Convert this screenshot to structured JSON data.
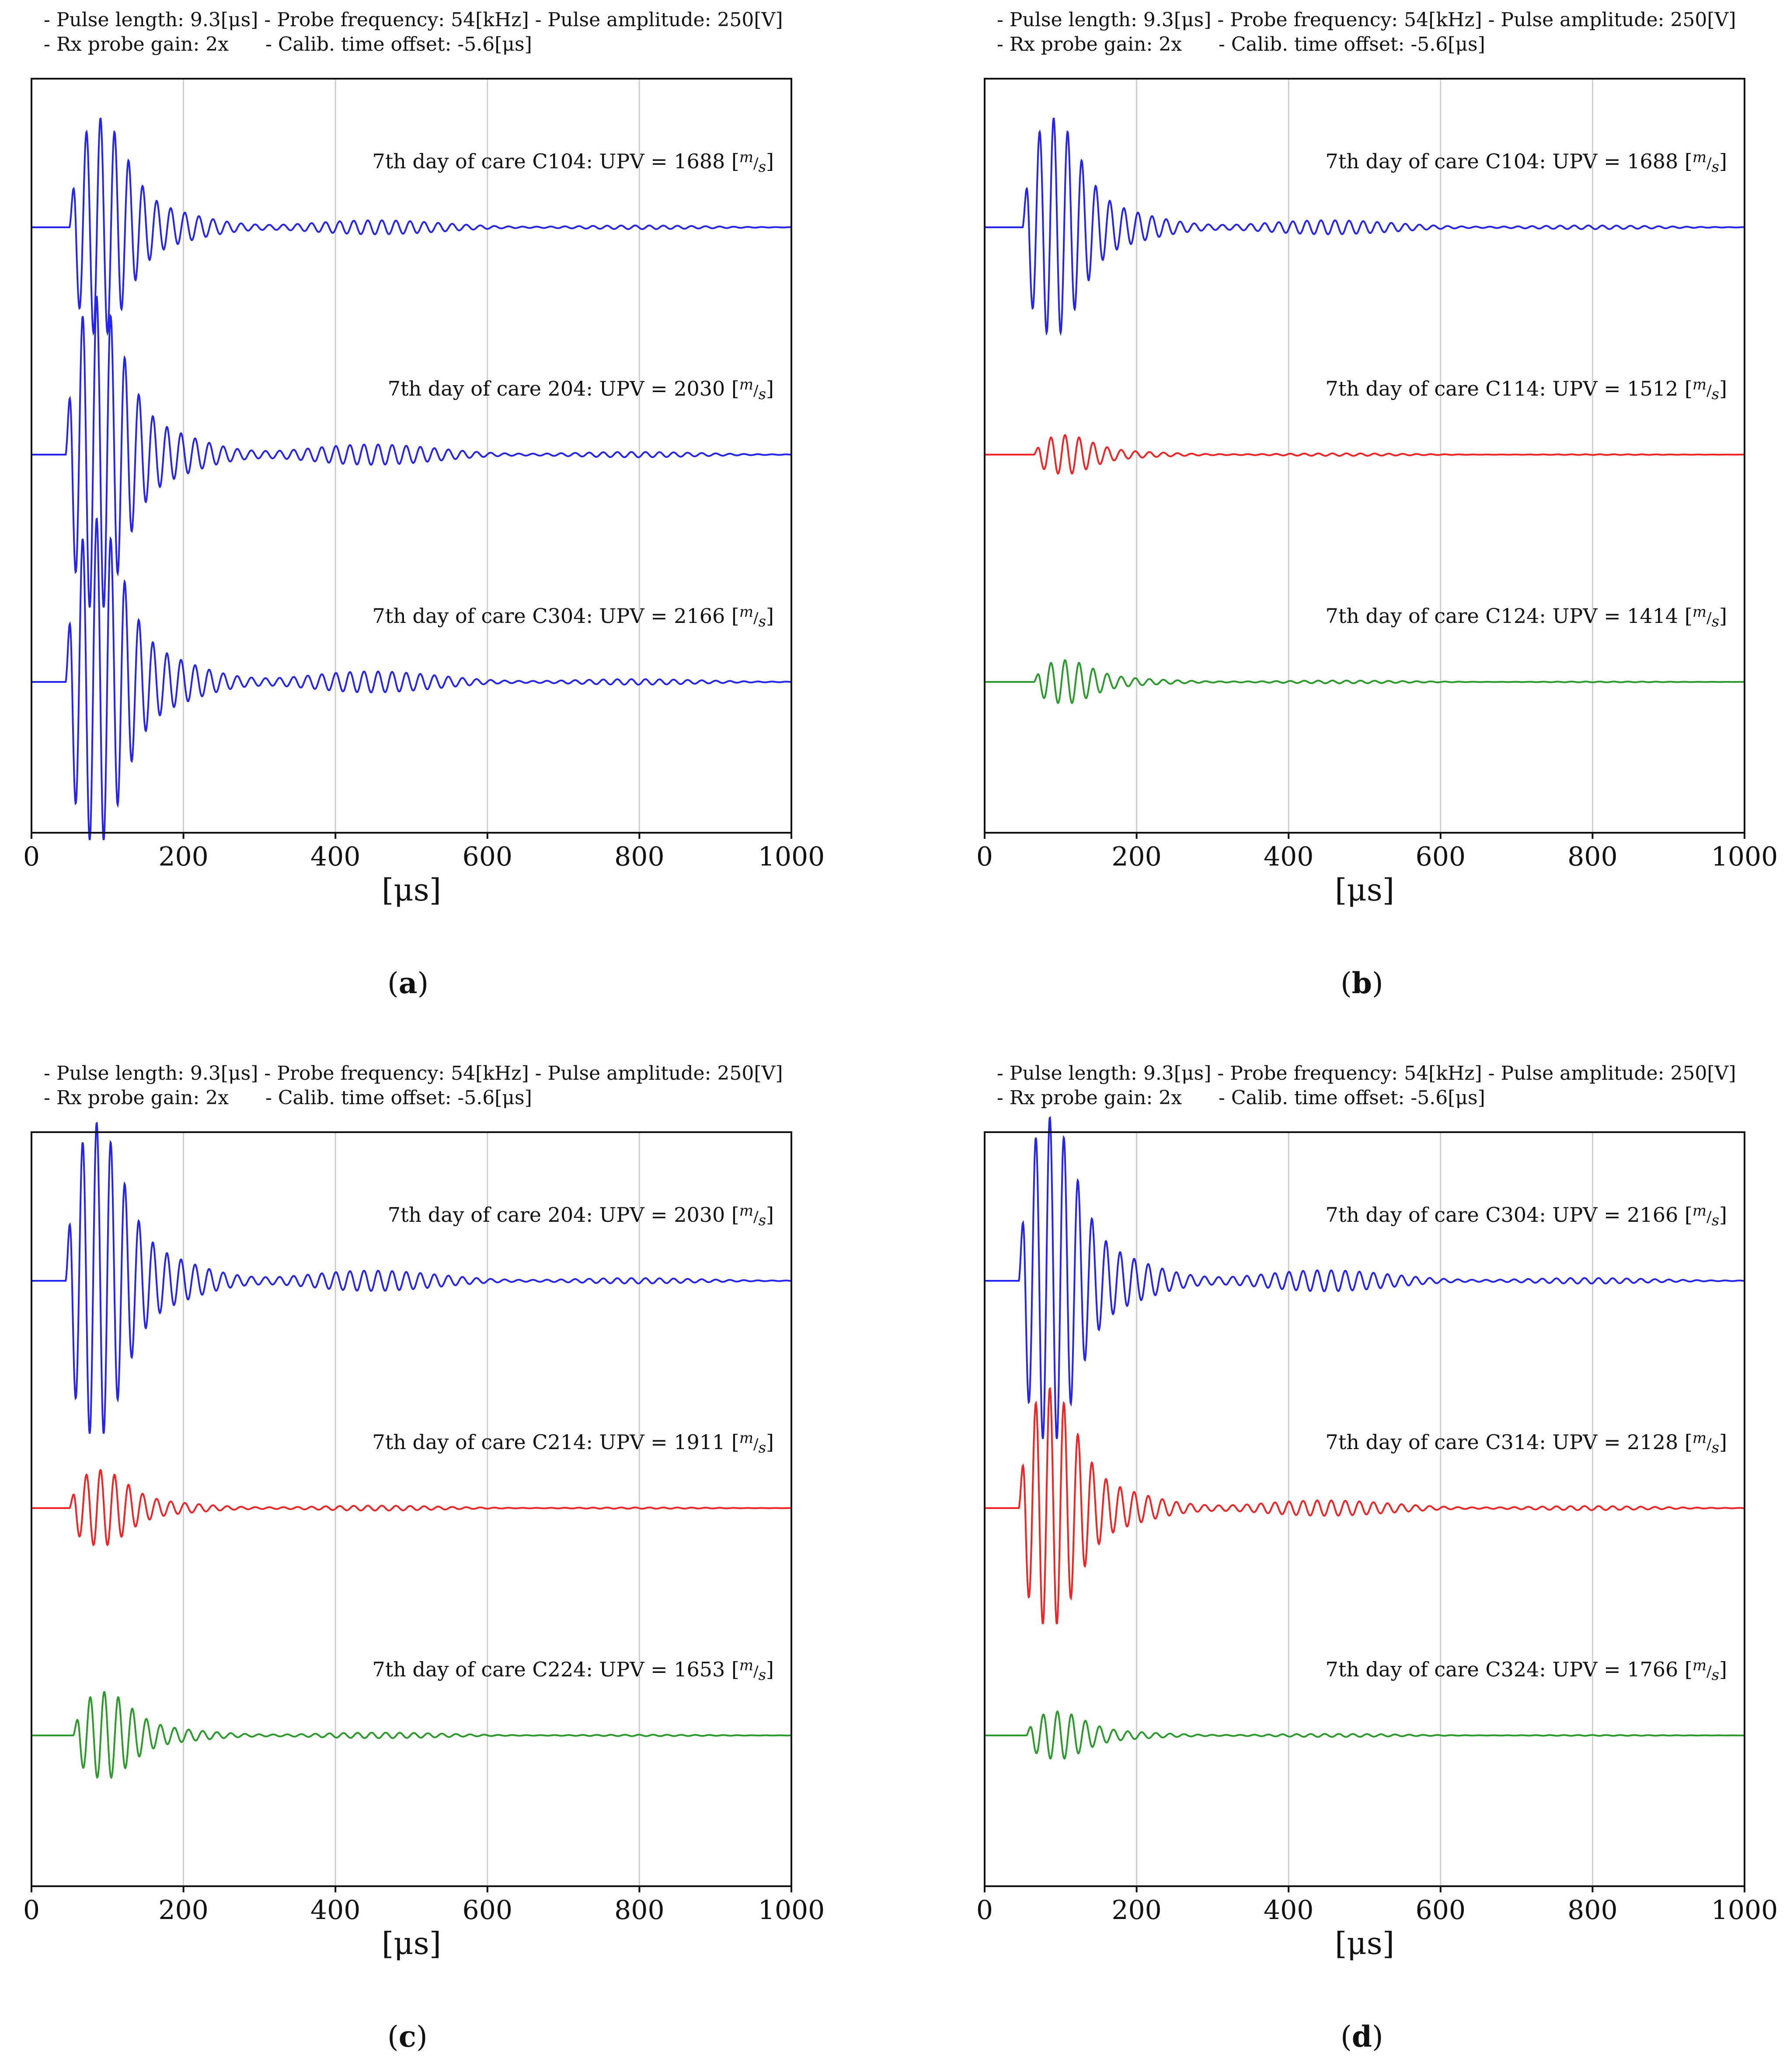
{
  "header": {
    "line1": "- Pulse length: 9.3[μs] - Probe frequency: 54[kHz] - Pulse amplitude: 250[V]",
    "line2": "- Rx probe gain: 2x      - Calib. time offset: -5.6[μs]"
  },
  "colors": {
    "blue": "#2424f0",
    "red": "#f02424",
    "green": "#2a9a2a",
    "grid": "#cccccc"
  },
  "chart_data": [
    {
      "type": "line",
      "panel_label": "a",
      "xlabel": "[μs]",
      "xlim": [
        0,
        1000
      ],
      "xticks": [
        "0",
        "200",
        "400",
        "600",
        "800",
        "1000"
      ],
      "series": [
        {
          "name": "C104",
          "label_prefix": "7th day of care C104: UPV = 1688 [",
          "upv": 1688,
          "color": "blue",
          "onset": 50,
          "amp": 1.0
        },
        {
          "name": "204",
          "label_prefix": "7th day of care 204: UPV = 2030 [",
          "upv": 2030,
          "color": "blue",
          "onset": 45,
          "amp": 1.45
        },
        {
          "name": "C304",
          "label_prefix": "7th day of care C304: UPV = 2166 [",
          "upv": 2166,
          "color": "blue",
          "onset": 45,
          "amp": 1.5
        }
      ]
    },
    {
      "type": "line",
      "panel_label": "b",
      "xlabel": "[μs]",
      "xlim": [
        0,
        1000
      ],
      "xticks": [
        "0",
        "200",
        "400",
        "600",
        "800",
        "1000"
      ],
      "series": [
        {
          "name": "C104",
          "label_prefix": "7th day of care C104: UPV = 1688 [",
          "upv": 1688,
          "color": "blue",
          "onset": 50,
          "amp": 1.0
        },
        {
          "name": "C114",
          "label_prefix": "7th day of care C114: UPV = 1512 [",
          "upv": 1512,
          "color": "red",
          "onset": 65,
          "amp": 0.18
        },
        {
          "name": "C124",
          "label_prefix": "7th day of care C124: UPV = 1414 [",
          "upv": 1414,
          "color": "green",
          "onset": 65,
          "amp": 0.2
        }
      ]
    },
    {
      "type": "line",
      "panel_label": "c",
      "xlabel": "[μs]",
      "xlim": [
        0,
        1000
      ],
      "xticks": [
        "0",
        "200",
        "400",
        "600",
        "800",
        "1000"
      ],
      "series": [
        {
          "name": "204",
          "label_prefix": "7th day of care 204: UPV = 2030 [",
          "upv": 2030,
          "color": "blue",
          "onset": 45,
          "amp": 1.45
        },
        {
          "name": "C214",
          "label_prefix": "7th day of care C214: UPV = 1911 [",
          "upv": 1911,
          "color": "red",
          "onset": 50,
          "amp": 0.35
        },
        {
          "name": "C224",
          "label_prefix": "7th day of care C224: UPV = 1653 [",
          "upv": 1653,
          "color": "green",
          "onset": 55,
          "amp": 0.4
        }
      ]
    },
    {
      "type": "line",
      "panel_label": "d",
      "xlabel": "[μs]",
      "xlim": [
        0,
        1000
      ],
      "xticks": [
        "0",
        "200",
        "400",
        "600",
        "800",
        "1000"
      ],
      "series": [
        {
          "name": "C304",
          "label_prefix": "7th day of care C304: UPV = 2166 [",
          "upv": 2166,
          "color": "blue",
          "onset": 45,
          "amp": 1.5
        },
        {
          "name": "C314",
          "label_prefix": "7th day of care C314: UPV = 2128 [",
          "upv": 2128,
          "color": "red",
          "onset": 45,
          "amp": 1.1
        },
        {
          "name": "C324",
          "label_prefix": "7th day of care C324: UPV = 1766 [",
          "upv": 1766,
          "color": "green",
          "onset": 55,
          "amp": 0.22
        }
      ]
    }
  ],
  "unit": {
    "num": "m",
    "den": "s",
    "close": "]"
  }
}
